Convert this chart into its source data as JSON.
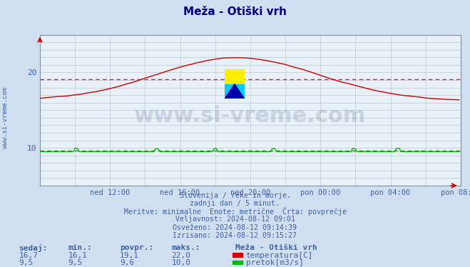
{
  "title": "Meža - Otiški vrh",
  "bg_color": "#d0dff0",
  "plot_bg_color": "#e8f0f8",
  "grid_color": "#b8c8d8",
  "title_color": "#000080",
  "text_color": "#4060a0",
  "xlabel_color": "#4060a0",
  "ylabel_color": "#4060a0",
  "watermark_text": "www.si-vreme.com",
  "watermark_color": "#1a3a6a",
  "watermark_alpha": 0.15,
  "temp_color": "#cc0000",
  "flow_color": "#00bb00",
  "avg_temp_color": "#dd2222",
  "avg_flow_color": "#009900",
  "avg_temp_value": 19.1,
  "avg_flow_value": 9.6,
  "y_min": 5,
  "y_max": 25,
  "y_ticks": [
    10,
    20
  ],
  "x_tick_labels": [
    "ned 12:00",
    "ned 16:00",
    "ned 20:00",
    "pon 00:00",
    "pon 04:00",
    "pon 08:00"
  ],
  "n_points": 288,
  "subtitle_lines": [
    "Slovenija / reke in morje.",
    "zadnji dan / 5 minut.",
    "Meritve: minimalne  Enote: metrične  Črta: povprečje",
    "Veljavnost: 2024-08-12 09:01",
    "Osveženo: 2024-08-12 09:14:39",
    "Izrisano: 2024-08-12 09:15:27"
  ],
  "legend_title": "Meža - Otiški vrh",
  "legend_items": [
    {
      "label": "temperatura[C]",
      "color": "#cc0000"
    },
    {
      "label": "pretok[m3/s]",
      "color": "#00bb00"
    }
  ],
  "table_headers": [
    "sedaj:",
    "min.:",
    "povpr.:",
    "maks.:"
  ],
  "table_row1": [
    "16,7",
    "16,1",
    "19,1",
    "22,0"
  ],
  "table_row2": [
    "9,5",
    "9,5",
    "9,6",
    "10,0"
  ]
}
